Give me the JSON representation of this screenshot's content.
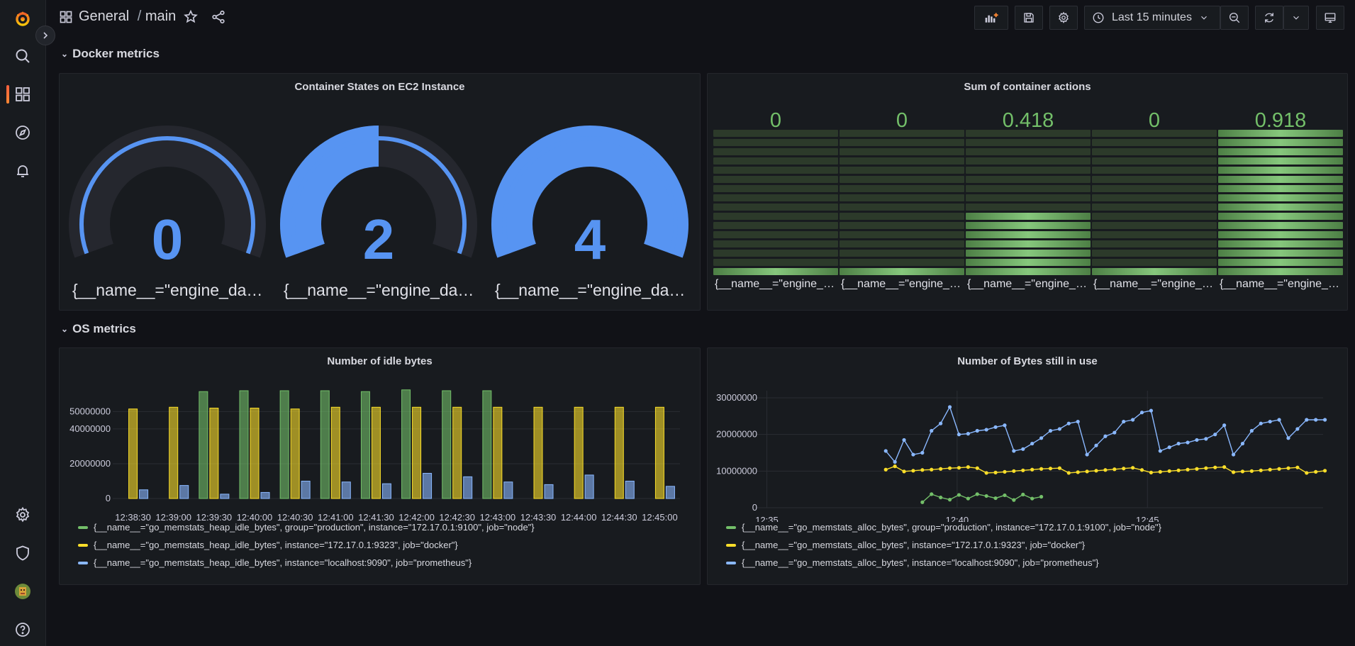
{
  "topbar": {
    "breadcrumb_folder": "General",
    "breadcrumb_sep": "/",
    "breadcrumb_dashboard": "main",
    "time_range": "Last 15 minutes"
  },
  "sidebar": {
    "items": [
      {
        "name": "grafana-logo-icon"
      },
      {
        "name": "search-icon"
      },
      {
        "name": "dashboards-icon"
      },
      {
        "name": "explore-icon"
      },
      {
        "name": "alerting-icon"
      },
      {
        "name": "configuration-icon"
      },
      {
        "name": "server-admin-icon"
      },
      {
        "name": "avatar"
      },
      {
        "name": "help-icon"
      }
    ]
  },
  "rows": {
    "docker": "Docker metrics",
    "os": "OS metrics"
  },
  "colors": {
    "blue": "#5794f2",
    "green": "#73bf69",
    "yellow": "#fade2a",
    "bg_panel": "#181b1f",
    "bg_page": "#111217"
  },
  "panels": {
    "gauges": {
      "title": "Container States on EC2 Instance",
      "items": [
        {
          "value": "0",
          "fraction": 0.0,
          "label": "{__name__=\"engine_daem..."
        },
        {
          "value": "2",
          "fraction": 0.5,
          "label": "{__name__=\"engine_daem..."
        },
        {
          "value": "4",
          "fraction": 1.0,
          "label": "{__name__=\"engine_daem..."
        }
      ]
    },
    "bargauge": {
      "title": "Sum of container actions",
      "max": 0.918,
      "items": [
        {
          "value": "0",
          "num": 0,
          "label": "{__name__=\"engine_da..."
        },
        {
          "value": "0",
          "num": 0,
          "label": "{__name__=\"engine_da..."
        },
        {
          "value": "0.418",
          "num": 0.418,
          "label": "{__name__=\"engine_da..."
        },
        {
          "value": "0",
          "num": 0,
          "label": "{__name__=\"engine_da..."
        },
        {
          "value": "0.918",
          "num": 0.918,
          "label": "{__name__=\"engine_da..."
        }
      ]
    },
    "idle_bytes": {
      "title": "Number of idle bytes",
      "legend": [
        {
          "label": "{__name__=\"go_memstats_heap_idle_bytes\", group=\"production\", instance=\"172.17.0.1:9100\", job=\"node\"}",
          "color": "#73bf69"
        },
        {
          "label": "{__name__=\"go_memstats_heap_idle_bytes\", instance=\"172.17.0.1:9323\", job=\"docker\"}",
          "color": "#fade2a"
        },
        {
          "label": "{__name__=\"go_memstats_heap_idle_bytes\", instance=\"localhost:9090\", job=\"prometheus\"}",
          "color": "#8ab8ff"
        }
      ]
    },
    "bytes_in_use": {
      "title": "Number of Bytes still in use",
      "legend": [
        {
          "label": "{__name__=\"go_memstats_alloc_bytes\", group=\"production\", instance=\"172.17.0.1:9100\", job=\"node\"}",
          "color": "#73bf69"
        },
        {
          "label": "{__name__=\"go_memstats_alloc_bytes\", instance=\"172.17.0.1:9323\", job=\"docker\"}",
          "color": "#fade2a"
        },
        {
          "label": "{__name__=\"go_memstats_alloc_bytes\", instance=\"localhost:9090\", job=\"prometheus\"}",
          "color": "#8ab8ff"
        }
      ]
    }
  },
  "chart_data": [
    {
      "type": "bar",
      "title": "Number of idle bytes",
      "categories": [
        "12:38:30",
        "12:39:00",
        "12:39:30",
        "12:40:00",
        "12:40:30",
        "12:41:00",
        "12:41:30",
        "12:42:00",
        "12:42:30",
        "12:43:00",
        "12:43:30",
        "12:44:00",
        "12:44:30",
        "12:45:00"
      ],
      "yticks": [
        "0",
        "20000000",
        "40000000",
        "50000000"
      ],
      "ylim": [
        0,
        62000000
      ],
      "series": [
        {
          "color": "#73bf69",
          "values": [
            null,
            null,
            61500000,
            62000000,
            62000000,
            62000000,
            61500000,
            62500000,
            62000000,
            62000000,
            null,
            null,
            null,
            null
          ]
        },
        {
          "color": "#fade2a",
          "values": [
            51500000,
            52500000,
            52000000,
            52000000,
            51500000,
            52500000,
            52500000,
            52500000,
            52500000,
            52500000,
            52500000,
            52500000,
            52500000,
            52500000
          ]
        },
        {
          "color": "#8ab8ff",
          "values": [
            5000000,
            7500000,
            2500000,
            3500000,
            10000000,
            9500000,
            8500000,
            14500000,
            12500000,
            9500000,
            8000000,
            13500000,
            10000000,
            7000000
          ]
        }
      ]
    },
    {
      "type": "line",
      "title": "Number of Bytes still in use",
      "xticks": [
        "12:35",
        "12:40",
        "12:45"
      ],
      "yticks": [
        "0",
        "10000000",
        "20000000",
        "30000000"
      ],
      "ylim": [
        0,
        30000000
      ],
      "xlim_minutes": [
        0,
        15.5
      ],
      "series": [
        {
          "color": "#73bf69",
          "x_minutes": [
            4.55,
            4.8,
            5.05,
            5.3,
            5.55,
            5.8,
            6.05,
            6.3,
            6.55,
            6.8,
            7.05,
            7.3,
            7.55,
            7.8
          ],
          "values": [
            1500000,
            3700000,
            2800000,
            2200000,
            3500000,
            2500000,
            3700000,
            3200000,
            2600000,
            3400000,
            2100000,
            3600000,
            2500000,
            3000000
          ]
        },
        {
          "color": "#fade2a",
          "x_minutes": [
            3.55,
            3.8,
            4.05,
            4.3,
            4.55,
            4.8,
            5.05,
            5.3,
            5.55,
            5.8,
            6.05,
            6.3,
            6.55,
            6.8,
            7.05,
            7.3,
            7.55,
            7.8,
            8.05,
            8.3,
            8.55,
            8.8,
            9.05,
            9.3,
            9.55,
            9.8,
            10.05,
            10.3,
            10.55,
            10.8,
            11.05,
            11.3,
            11.55,
            11.8,
            12.05,
            12.3,
            12.55,
            12.8,
            13.05,
            13.3,
            13.55,
            13.8,
            14.05,
            14.3,
            14.55,
            14.8,
            15.05,
            15.3,
            15.55
          ],
          "values": [
            10400000,
            11300000,
            9900000,
            10100000,
            10300000,
            10400000,
            10600000,
            10800000,
            10900000,
            11100000,
            10800000,
            9500000,
            9600000,
            9800000,
            10000000,
            10200000,
            10400000,
            10600000,
            10700000,
            10800000,
            9500000,
            9700000,
            9900000,
            10100000,
            10300000,
            10500000,
            10700000,
            10900000,
            10300000,
            9600000,
            9800000,
            10000000,
            10200000,
            10400000,
            10600000,
            10800000,
            11000000,
            11100000,
            9700000,
            9900000,
            10000000,
            10200000,
            10400000,
            10600000,
            10800000,
            11000000,
            9500000,
            9800000,
            10100000
          ]
        },
        {
          "color": "#8ab8ff",
          "x_minutes": [
            3.55,
            3.8,
            4.05,
            4.3,
            4.55,
            4.8,
            5.05,
            5.3,
            5.55,
            5.8,
            6.05,
            6.3,
            6.55,
            6.8,
            7.05,
            7.3,
            7.55,
            7.8,
            8.05,
            8.3,
            8.55,
            8.8,
            9.05,
            9.3,
            9.55,
            9.8,
            10.05,
            10.3,
            10.55,
            10.8,
            11.05,
            11.3,
            11.55,
            11.8,
            12.05,
            12.3,
            12.55,
            12.8,
            13.05,
            13.3,
            13.55,
            13.8,
            14.05,
            14.3,
            14.55,
            14.8,
            15.05,
            15.3,
            15.55
          ],
          "values": [
            15500000,
            12500000,
            18500000,
            14500000,
            15000000,
            21000000,
            23000000,
            27500000,
            20000000,
            20200000,
            21000000,
            21300000,
            22000000,
            22500000,
            15500000,
            16000000,
            17500000,
            19000000,
            21000000,
            21500000,
            23000000,
            23500000,
            14500000,
            17000000,
            19500000,
            20500000,
            23500000,
            24000000,
            26000000,
            26500000,
            15500000,
            16500000,
            17500000,
            17800000,
            18500000,
            18800000,
            20000000,
            22500000,
            14500000,
            17500000,
            21000000,
            23000000,
            23500000,
            24000000,
            19000000,
            21500000,
            24000000,
            24000000,
            24000000
          ]
        }
      ]
    }
  ]
}
